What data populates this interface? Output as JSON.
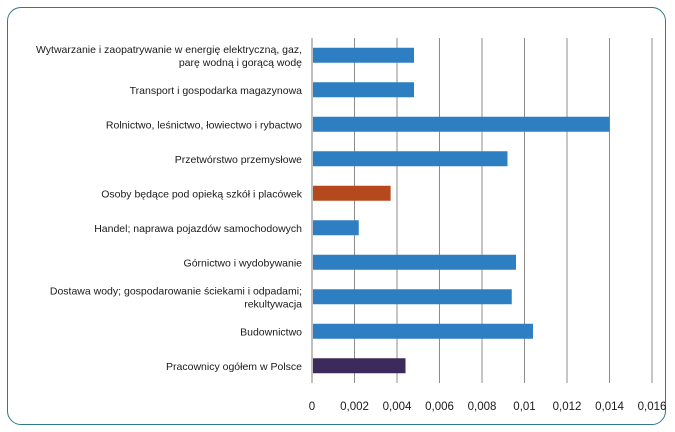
{
  "chart_data": {
    "type": "bar",
    "orientation": "horizontal",
    "title": "",
    "xlabel": "",
    "ylabel": "",
    "xlim": [
      0,
      0.016
    ],
    "x_ticks": [
      "0",
      "0,002",
      "0,004",
      "0,006",
      "0,008",
      "0,01",
      "0,012",
      "0,014",
      "0,016"
    ],
    "grid": "vertical",
    "categories": [
      [
        "Wytwarzanie i zaopatrywanie w energię elektryczną, gaz,",
        "parę wodną i gorącą wodę"
      ],
      [
        "Transport i gospodarka magazynowa"
      ],
      [
        "Rolnictwo, leśnictwo, łowiectwo i rybactwo"
      ],
      [
        "Przetwórstwo przemysłowe"
      ],
      [
        "Osoby będące pod opieką szkół i placówek"
      ],
      [
        "Handel; naprawa pojazdów samochodowych"
      ],
      [
        "Górnictwo i wydobywanie"
      ],
      [
        "Dostawa wody; gospodarowanie ściekami i odpadami;",
        "rekultywacja"
      ],
      [
        "Budownictwo"
      ],
      [
        "Pracownicy ogółem w Polsce"
      ]
    ],
    "values": [
      0.0048,
      0.0048,
      0.014,
      0.0092,
      0.0037,
      0.0022,
      0.0096,
      0.0094,
      0.0104,
      0.0044
    ],
    "colors": [
      "#2e7fc1",
      "#2e7fc1",
      "#2e7fc1",
      "#2e7fc1",
      "#b5481c",
      "#2e7fc1",
      "#2e7fc1",
      "#2e7fc1",
      "#2e7fc1",
      "#3d2a5c"
    ]
  }
}
